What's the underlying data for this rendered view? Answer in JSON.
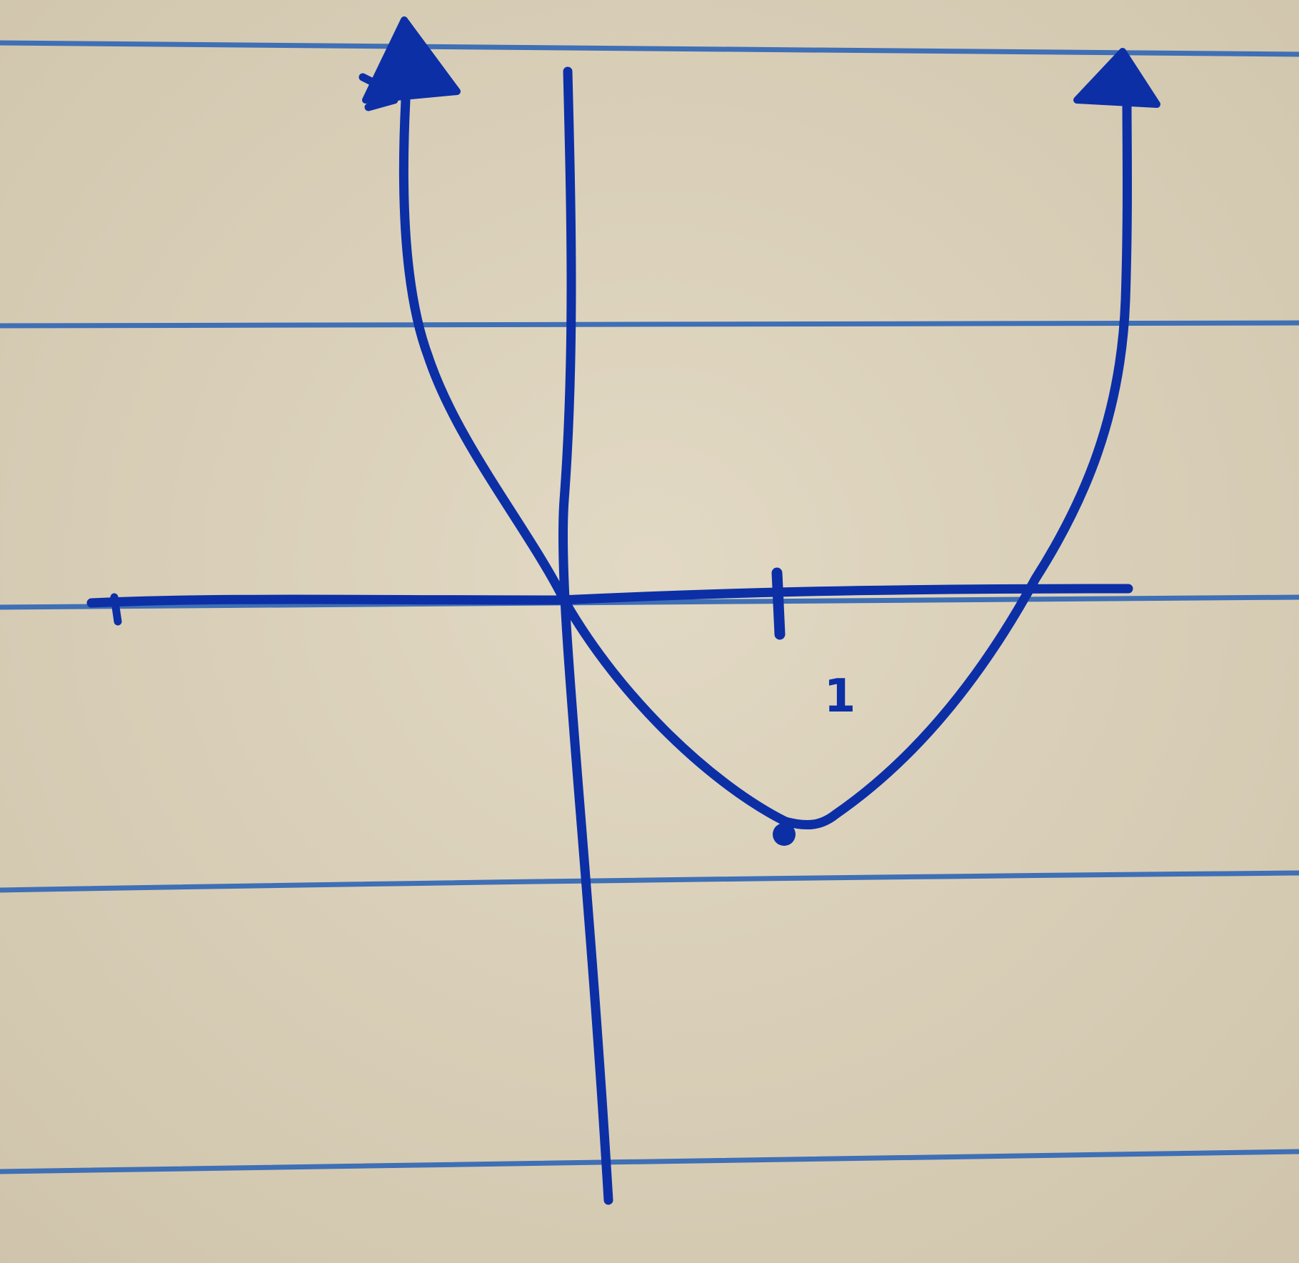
{
  "colors": {
    "paper": "#ddd3bd",
    "paper_shade": "#d2c8b1",
    "rule_line": "#3f6fb5",
    "ink": "#0c2fa6"
  },
  "graph": {
    "tick_label": "1",
    "curve_shape": "U-shaped curve with arrowheads at both ends, crossing the x-axis at the origin and at a second point right of the tick, minimum marked with a dot"
  }
}
